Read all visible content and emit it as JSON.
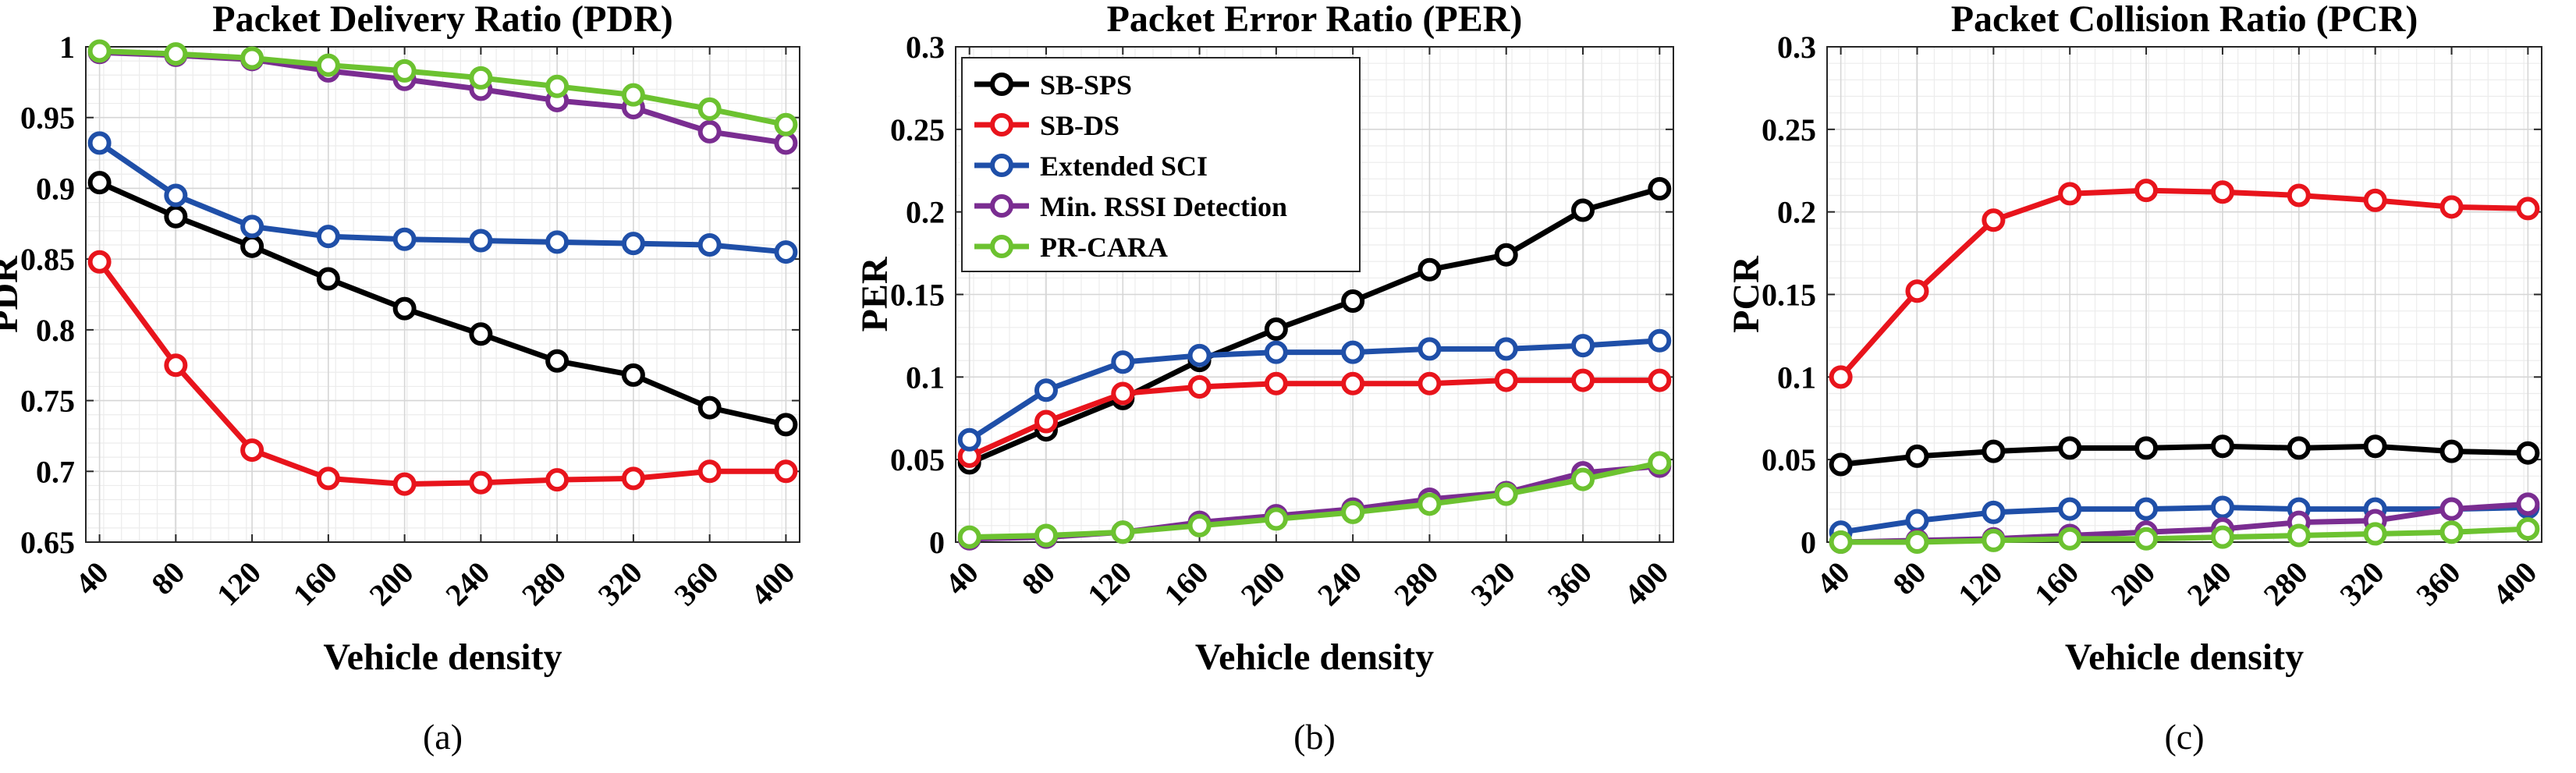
{
  "colors": {
    "SB-SPS": "#000000",
    "SB-DS": "#e8141c",
    "Extended SCI": "#1f4fa8",
    "Min. RSSI Detection": "#7a2d91",
    "PR-CARA": "#6cc230"
  },
  "chart_data": [
    {
      "type": "line",
      "title": "Packet Delivery Ratio (PDR)",
      "xlabel": "Vehicle density",
      "ylabel": "PDR",
      "caption": "(a)",
      "x": [
        40,
        80,
        120,
        160,
        200,
        240,
        280,
        320,
        360,
        400
      ],
      "xtick_labels": [
        "40",
        "80",
        "120",
        "160",
        "200",
        "240",
        "280",
        "320",
        "360",
        "400"
      ],
      "ylim": [
        0.65,
        1
      ],
      "yticks": [
        0.65,
        0.7,
        0.75,
        0.8,
        0.85,
        0.9,
        0.95,
        1
      ],
      "ytick_labels": [
        "0.65",
        "0.7",
        "0.75",
        "0.8",
        "0.85",
        "0.9",
        "0.95",
        "1"
      ],
      "grid": true,
      "legend": false,
      "series": [
        {
          "name": "SB-SPS",
          "values": [
            0.904,
            0.88,
            0.859,
            0.836,
            0.815,
            0.797,
            0.778,
            0.768,
            0.745,
            0.733
          ]
        },
        {
          "name": "SB-DS",
          "values": [
            0.848,
            0.775,
            0.715,
            0.695,
            0.691,
            0.692,
            0.694,
            0.695,
            0.7,
            0.7
          ]
        },
        {
          "name": "Extended SCI",
          "values": [
            0.932,
            0.895,
            0.873,
            0.866,
            0.864,
            0.863,
            0.862,
            0.861,
            0.86,
            0.855
          ]
        },
        {
          "name": "Min. RSSI Detection",
          "values": [
            0.996,
            0.994,
            0.991,
            0.983,
            0.977,
            0.97,
            0.962,
            0.957,
            0.94,
            0.932
          ]
        },
        {
          "name": "PR-CARA",
          "values": [
            0.997,
            0.995,
            0.992,
            0.987,
            0.983,
            0.978,
            0.972,
            0.966,
            0.956,
            0.945
          ]
        }
      ]
    },
    {
      "type": "line",
      "title": "Packet Error Ratio (PER)",
      "xlabel": "Vehicle density",
      "ylabel": "PER",
      "caption": "(b)",
      "x": [
        40,
        80,
        120,
        160,
        200,
        240,
        280,
        320,
        360,
        400
      ],
      "xtick_labels": [
        "40",
        "80",
        "120",
        "160",
        "200",
        "240",
        "280",
        "320",
        "360",
        "400"
      ],
      "ylim": [
        0,
        0.3
      ],
      "yticks": [
        0,
        0.05,
        0.1,
        0.15,
        0.2,
        0.25,
        0.3
      ],
      "ytick_labels": [
        "0",
        "0.05",
        "0.1",
        "0.15",
        "0.2",
        "0.25",
        "0.3"
      ],
      "grid": true,
      "legend": true,
      "legend_position": "top-left",
      "series": [
        {
          "name": "SB-SPS",
          "values": [
            0.048,
            0.068,
            0.087,
            0.11,
            0.129,
            0.146,
            0.165,
            0.174,
            0.201,
            0.214
          ]
        },
        {
          "name": "SB-DS",
          "values": [
            0.052,
            0.073,
            0.09,
            0.094,
            0.096,
            0.096,
            0.096,
            0.098,
            0.098,
            0.098
          ]
        },
        {
          "name": "Extended SCI",
          "values": [
            0.062,
            0.092,
            0.109,
            0.113,
            0.115,
            0.115,
            0.117,
            0.117,
            0.119,
            0.122
          ]
        },
        {
          "name": "Min. RSSI Detection",
          "values": [
            0.002,
            0.003,
            0.006,
            0.012,
            0.016,
            0.02,
            0.026,
            0.03,
            0.042,
            0.046
          ]
        },
        {
          "name": "PR-CARA",
          "values": [
            0.003,
            0.004,
            0.006,
            0.01,
            0.014,
            0.018,
            0.023,
            0.029,
            0.038,
            0.048
          ]
        }
      ]
    },
    {
      "type": "line",
      "title": "Packet Collision Ratio (PCR)",
      "xlabel": "Vehicle density",
      "ylabel": "PCR",
      "caption": "(c)",
      "x": [
        40,
        80,
        120,
        160,
        200,
        240,
        280,
        320,
        360,
        400
      ],
      "xtick_labels": [
        "40",
        "80",
        "120",
        "160",
        "200",
        "240",
        "280",
        "320",
        "360",
        "400"
      ],
      "ylim": [
        0,
        0.3
      ],
      "yticks": [
        0,
        0.05,
        0.1,
        0.15,
        0.2,
        0.25,
        0.3
      ],
      "ytick_labels": [
        "0",
        "0.05",
        "0.1",
        "0.15",
        "0.2",
        "0.25",
        "0.3"
      ],
      "grid": true,
      "legend": false,
      "series": [
        {
          "name": "SB-SPS",
          "values": [
            0.047,
            0.052,
            0.055,
            0.057,
            0.057,
            0.058,
            0.057,
            0.058,
            0.055,
            0.054
          ]
        },
        {
          "name": "SB-DS",
          "values": [
            0.1,
            0.152,
            0.195,
            0.211,
            0.213,
            0.212,
            0.21,
            0.207,
            0.203,
            0.202
          ]
        },
        {
          "name": "Extended SCI",
          "values": [
            0.006,
            0.013,
            0.018,
            0.02,
            0.02,
            0.021,
            0.02,
            0.02,
            0.02,
            0.021
          ]
        },
        {
          "name": "Min. RSSI Detection",
          "values": [
            0.0,
            0.001,
            0.002,
            0.004,
            0.006,
            0.008,
            0.012,
            0.013,
            0.02,
            0.023
          ]
        },
        {
          "name": "PR-CARA",
          "values": [
            0.0,
            0.0,
            0.001,
            0.002,
            0.002,
            0.003,
            0.004,
            0.005,
            0.006,
            0.008
          ]
        }
      ]
    }
  ]
}
